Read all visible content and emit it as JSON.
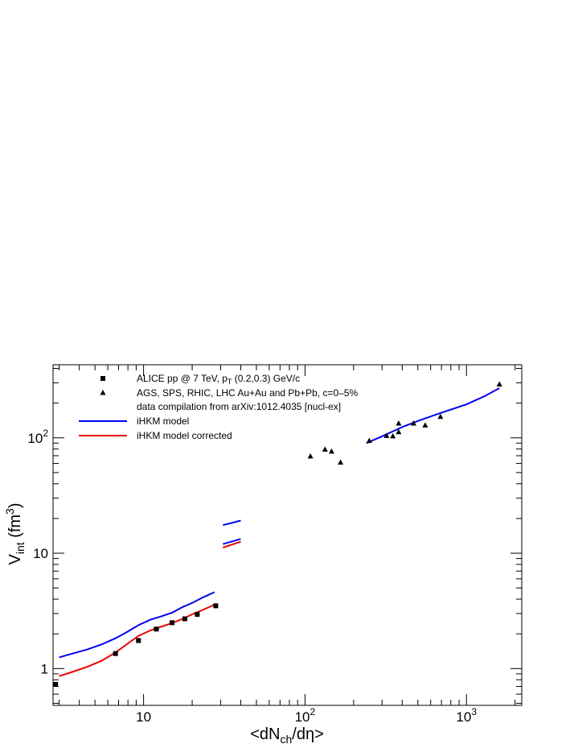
{
  "chart_data": {
    "type": "scatter",
    "xscale": "log",
    "yscale": "log",
    "xlim": [
      2.75,
      2200
    ],
    "ylim": [
      0.48,
      430
    ],
    "xlabel": {
      "pre": "<dN",
      "sub": "ch",
      "post": "/dη>"
    },
    "ylabel": {
      "pre": "V",
      "sub": "int",
      "mid": " (fm",
      "sup": "3",
      "post": ")"
    },
    "x_tick_labels": [
      {
        "value": 10,
        "base": "10",
        "exp": ""
      },
      {
        "value": 100,
        "base": "10",
        "exp": "2"
      },
      {
        "value": 1000,
        "base": "10",
        "exp": "3"
      }
    ],
    "y_tick_labels": [
      {
        "value": 1,
        "base": "1",
        "exp": ""
      },
      {
        "value": 10,
        "base": "10",
        "exp": ""
      },
      {
        "value": 100,
        "base": "10",
        "exp": "2"
      }
    ],
    "legend": [
      {
        "marker": "square",
        "color": "#000000",
        "pre": "ALICE pp @ 7 TeV, p",
        "sub": "T",
        "post": " (0.2,0.3) GeV/c"
      },
      {
        "marker": "triangle",
        "color": "#000000",
        "pre": "AGS, SPS, RHIC, LHC Au+Au and Pb+Pb, c=0–5%",
        "sub": "",
        "post": ""
      },
      {
        "marker": "none",
        "color": "#000000",
        "pre": "data compilation from arXiv:1012.4035 [nucl-ex]",
        "sub": "",
        "post": ""
      },
      {
        "marker": "line",
        "color": "#0000ee",
        "pre": "iHKM model",
        "sub": "",
        "post": ""
      },
      {
        "marker": "line",
        "color": "#ee0000",
        "pre": "iHKM model corrected",
        "sub": "",
        "post": ""
      }
    ],
    "colors": {
      "ihkm": "#0000ee",
      "ihkm_corrected": "#ee0000",
      "data": "#000000"
    },
    "series": [
      {
        "name": "ALICE pp @ 7 TeV, pT (0.2,0.3) GeV/c",
        "kind": "points",
        "marker": "square",
        "points": [
          [
            2.85,
            0.73
          ],
          [
            6.7,
            1.35
          ],
          [
            9.3,
            1.75
          ],
          [
            12.0,
            2.2
          ],
          [
            15.0,
            2.5
          ],
          [
            18.0,
            2.7
          ],
          [
            21.5,
            2.95
          ],
          [
            28.0,
            3.5
          ]
        ]
      },
      {
        "name": "AGS, SPS, RHIC, LHC Au+Au and Pb+Pb, c=0-5%",
        "kind": "points",
        "marker": "triangle",
        "points": [
          [
            108,
            69
          ],
          [
            133,
            79
          ],
          [
            146,
            76
          ],
          [
            166,
            61
          ],
          [
            250,
            94
          ],
          [
            320,
            104
          ],
          [
            350,
            103
          ],
          [
            380,
            112
          ],
          [
            380,
            133
          ],
          [
            470,
            133
          ],
          [
            555,
            128
          ],
          [
            690,
            152
          ],
          [
            1600,
            290
          ]
        ]
      },
      {
        "name": "iHKM model",
        "kind": "line",
        "color": "#0000ee",
        "segments": [
          [
            [
              3.0,
              1.25
            ],
            [
              3.5,
              1.33
            ],
            [
              4.5,
              1.47
            ],
            [
              5.5,
              1.62
            ],
            [
              6.7,
              1.83
            ],
            [
              8.0,
              2.1
            ],
            [
              9.3,
              2.38
            ],
            [
              11.0,
              2.65
            ],
            [
              13.0,
              2.85
            ],
            [
              15.0,
              3.05
            ],
            [
              17.5,
              3.42
            ],
            [
              20.0,
              3.7
            ],
            [
              23.0,
              4.1
            ],
            [
              27.5,
              4.6
            ]
          ],
          [
            [
              31,
              17.5
            ],
            [
              40,
              19.2
            ]
          ],
          [
            [
              31,
              12.0
            ],
            [
              40,
              13.3
            ]
          ],
          [
            [
              240,
              90
            ],
            [
              300,
              103
            ],
            [
              400,
              124
            ],
            [
              500,
              140
            ],
            [
              700,
              165
            ],
            [
              1000,
              195
            ],
            [
              1300,
              230
            ],
            [
              1600,
              270
            ]
          ]
        ]
      },
      {
        "name": "iHKM model corrected",
        "kind": "line",
        "color": "#ee0000",
        "segments": [
          [
            [
              3.0,
              0.86
            ],
            [
              3.5,
              0.92
            ],
            [
              4.5,
              1.04
            ],
            [
              5.5,
              1.17
            ],
            [
              6.7,
              1.38
            ],
            [
              8.0,
              1.65
            ],
            [
              9.3,
              1.92
            ],
            [
              11.0,
              2.14
            ],
            [
              13.0,
              2.32
            ],
            [
              15.0,
              2.48
            ],
            [
              17.5,
              2.7
            ],
            [
              20.0,
              2.95
            ],
            [
              23.0,
              3.2
            ],
            [
              27.5,
              3.58
            ]
          ],
          [
            [
              31,
              11.2
            ],
            [
              40,
              12.6
            ]
          ]
        ]
      }
    ]
  }
}
